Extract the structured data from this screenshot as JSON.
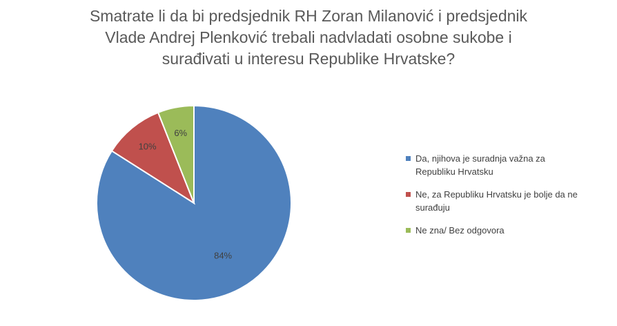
{
  "chart_data": {
    "type": "pie",
    "title_lines": [
      "Smatrate li da bi predsjednik RH Zoran Milanović i predsjednik",
      "Vlade Andrej Plenković trebali nadvladati osobne sukobe i",
      "surađivati u interesu Republike Hrvatske?"
    ],
    "slices": [
      {
        "label": "Da, njihova je suradnja važna za Republiku Hrvatsku",
        "legend_lines": [
          "Da, njihova je suradnja važna za",
          "Republiku Hrvatsku"
        ],
        "value": 84,
        "value_label": "84%",
        "color": "#4f81bd"
      },
      {
        "label": "Ne, za Republiku Hrvatsku je bolje da ne surađuju",
        "legend_lines": [
          "Ne, za Republiku Hrvatsku je bolje da ne",
          "surađuju"
        ],
        "value": 10,
        "value_label": "10%",
        "color": "#c0504d"
      },
      {
        "label": "Ne zna/ Bez odgovora",
        "legend_lines": [
          "Ne zna/ Bez odgovora"
        ],
        "value": 6,
        "value_label": "6%",
        "color": "#9bbb59"
      }
    ],
    "legend_position": "right"
  }
}
